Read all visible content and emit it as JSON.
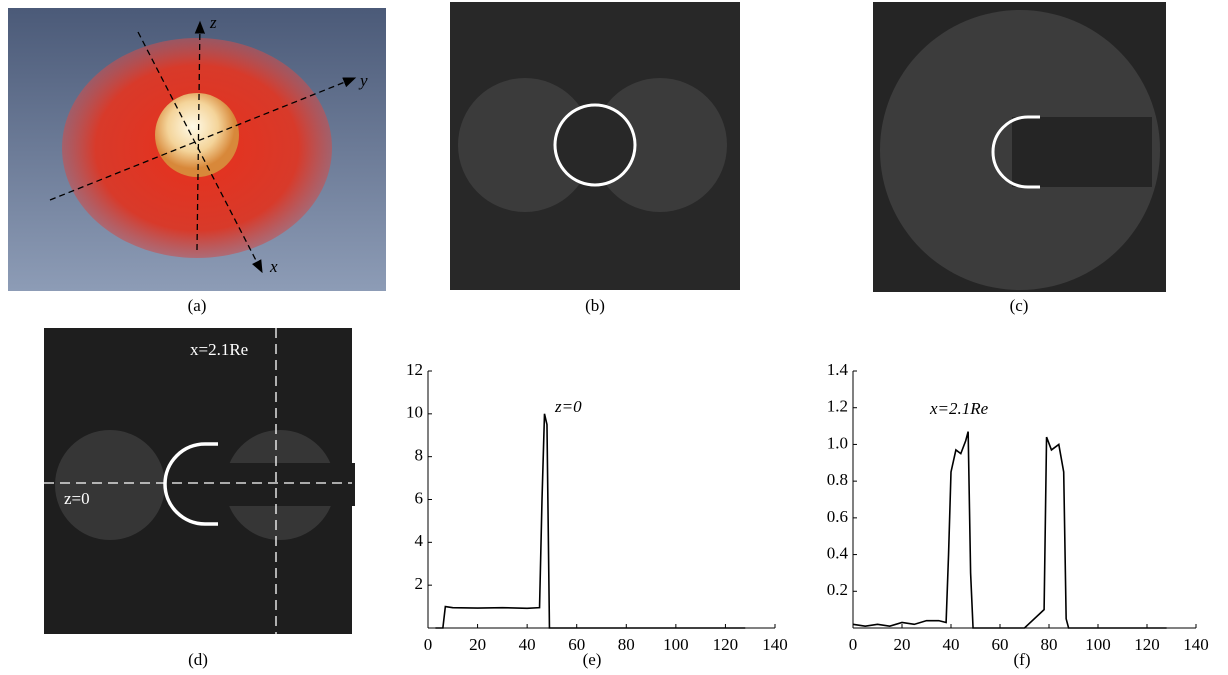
{
  "panels": {
    "labels": [
      "(a)",
      "(b)",
      "(c)",
      "(d)",
      "(e)",
      "(f)"
    ]
  },
  "image_a": {
    "axis_labels": [
      "z",
      "y",
      "x"
    ]
  },
  "image_d": {
    "labels": [
      "x=2.1Re",
      "z=0"
    ]
  },
  "chart_data": [
    {
      "type": "line",
      "annotation": "z=0",
      "color": "#000000",
      "x": [
        3,
        6,
        7,
        10,
        20,
        30,
        40,
        45,
        46,
        47,
        48,
        49,
        50,
        60,
        80,
        100,
        128
      ],
      "values": [
        0,
        0,
        1,
        0.95,
        0.93,
        0.95,
        0.92,
        0.95,
        6,
        10,
        9.5,
        0,
        0,
        0,
        0,
        0,
        0
      ],
      "xlim": [
        0,
        140
      ],
      "xticks": [
        0,
        20,
        40,
        60,
        80,
        100,
        120,
        140
      ],
      "ylim": [
        0,
        12
      ],
      "yticks": [
        2,
        4,
        6,
        8,
        10,
        12
      ]
    },
    {
      "type": "line",
      "annotation": "x=2.1Re",
      "color": "#000000",
      "x": [
        0,
        5,
        10,
        15,
        20,
        25,
        30,
        35,
        38,
        39,
        40,
        42,
        44,
        46,
        47,
        48,
        49,
        60,
        70,
        78,
        79,
        81,
        84,
        86,
        87,
        88,
        100,
        128
      ],
      "values": [
        0.02,
        0.01,
        0.02,
        0.01,
        0.03,
        0.02,
        0.04,
        0.04,
        0.03,
        0.4,
        0.85,
        0.97,
        0.95,
        1.02,
        1.07,
        0.3,
        0,
        0,
        0,
        0.1,
        1.04,
        0.97,
        1.0,
        0.85,
        0.05,
        0,
        0,
        0
      ],
      "xlim": [
        0,
        140
      ],
      "xticks": [
        0,
        20,
        40,
        60,
        80,
        100,
        120,
        140
      ],
      "ylim": [
        0,
        1.4
      ],
      "yticks": [
        0.2,
        0.4,
        0.6,
        0.8,
        {
          "value": 1,
          "label": "1.0"
        },
        1.2,
        1.4
      ]
    }
  ]
}
